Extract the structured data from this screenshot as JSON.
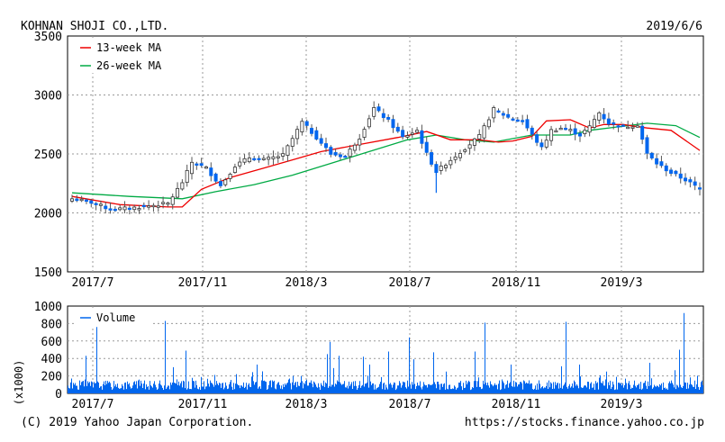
{
  "header": {
    "company": "KOHNAN SHOJI CO.,LTD.",
    "date": "2019/6/6"
  },
  "footer": {
    "copyright": "(C) 2019 Yahoo Japan Corporation.",
    "url": "https://stocks.finance.yahoo.co.jp"
  },
  "chart_data": [
    {
      "type": "candlestick",
      "title": "",
      "yaxis": {
        "ticks": [
          "3500",
          "3000",
          "2500",
          "2000",
          "1500"
        ],
        "ylim": [
          1500,
          3500
        ]
      },
      "xaxis": {
        "ticks": [
          "2017/7",
          "2017/11",
          "2018/3",
          "2018/7",
          "2018/11",
          "2019/3"
        ]
      },
      "grid": true,
      "legend": {
        "placement": "top-left",
        "entries": [
          "13-week MA",
          "26-week MA"
        ]
      },
      "colors": {
        "up": "#ffffff",
        "down": "#0066ee",
        "ma13": "#ee0000",
        "ma26": "#00aa44"
      },
      "anchors": [
        [
          0,
          2120,
          "up"
        ],
        [
          4,
          2090,
          "down"
        ],
        [
          8,
          2030,
          "down"
        ],
        [
          12,
          2040,
          "up"
        ],
        [
          16,
          2060,
          "up"
        ],
        [
          20,
          2080,
          "up"
        ],
        [
          23,
          2260,
          "up"
        ],
        [
          25,
          2430,
          "up"
        ],
        [
          28,
          2380,
          "down"
        ],
        [
          31,
          2230,
          "down"
        ],
        [
          34,
          2400,
          "up"
        ],
        [
          37,
          2470,
          "up"
        ],
        [
          40,
          2450,
          "down"
        ],
        [
          44,
          2490,
          "up"
        ],
        [
          48,
          2770,
          "up"
        ],
        [
          51,
          2640,
          "down"
        ],
        [
          54,
          2500,
          "down"
        ],
        [
          57,
          2480,
          "down"
        ],
        [
          60,
          2640,
          "up"
        ],
        [
          63,
          2890,
          "up"
        ],
        [
          66,
          2780,
          "down"
        ],
        [
          69,
          2640,
          "up"
        ],
        [
          72,
          2700,
          "down"
        ],
        [
          74,
          2500,
          "down"
        ],
        [
          76,
          2350,
          "down"
        ],
        [
          79,
          2450,
          "up"
        ],
        [
          82,
          2550,
          "up"
        ],
        [
          85,
          2650,
          "up"
        ],
        [
          88,
          2880,
          "up"
        ],
        [
          91,
          2810,
          "down"
        ],
        [
          94,
          2780,
          "down"
        ],
        [
          96,
          2660,
          "down"
        ],
        [
          98,
          2550,
          "down"
        ],
        [
          100,
          2700,
          "up"
        ],
        [
          102,
          2720,
          "up"
        ],
        [
          104,
          2700,
          "down"
        ],
        [
          106,
          2660,
          "up"
        ],
        [
          108,
          2730,
          "up"
        ],
        [
          110,
          2850,
          "up"
        ],
        [
          112,
          2760,
          "down"
        ],
        [
          115,
          2730,
          "down"
        ],
        [
          118,
          2750,
          "up"
        ],
        [
          120,
          2500,
          "down"
        ],
        [
          122,
          2420,
          "down"
        ],
        [
          125,
          2340,
          "down"
        ],
        [
          128,
          2280,
          "down"
        ],
        [
          131,
          2200,
          "down"
        ]
      ],
      "ma13": [
        [
          0,
          2140
        ],
        [
          10,
          2070
        ],
        [
          20,
          2050
        ],
        [
          23,
          2050
        ],
        [
          27,
          2200
        ],
        [
          33,
          2300
        ],
        [
          40,
          2380
        ],
        [
          46,
          2450
        ],
        [
          52,
          2520
        ],
        [
          60,
          2580
        ],
        [
          68,
          2640
        ],
        [
          74,
          2690
        ],
        [
          79,
          2620
        ],
        [
          85,
          2620
        ],
        [
          89,
          2600
        ],
        [
          92,
          2610
        ],
        [
          96,
          2650
        ],
        [
          99,
          2780
        ],
        [
          104,
          2790
        ],
        [
          108,
          2720
        ],
        [
          111,
          2750
        ],
        [
          115,
          2750
        ],
        [
          120,
          2720
        ],
        [
          125,
          2700
        ],
        [
          131,
          2530
        ]
      ],
      "ma26": [
        [
          0,
          2170
        ],
        [
          12,
          2140
        ],
        [
          23,
          2120
        ],
        [
          30,
          2180
        ],
        [
          38,
          2240
        ],
        [
          46,
          2320
        ],
        [
          54,
          2420
        ],
        [
          62,
          2520
        ],
        [
          70,
          2620
        ],
        [
          76,
          2660
        ],
        [
          82,
          2620
        ],
        [
          88,
          2600
        ],
        [
          96,
          2660
        ],
        [
          104,
          2660
        ],
        [
          108,
          2700
        ],
        [
          114,
          2730
        ],
        [
          120,
          2760
        ],
        [
          126,
          2740
        ],
        [
          131,
          2640
        ]
      ]
    },
    {
      "type": "bar",
      "title": "",
      "ylabel": "(x1000)",
      "yaxis": {
        "ticks": [
          "1000",
          "800",
          "600",
          "400",
          "200",
          "0"
        ],
        "ylim": [
          0,
          1000
        ]
      },
      "xaxis": {
        "ticks": [
          "2017/7",
          "2017/11",
          "2018/3",
          "2018/7",
          "2018/11",
          "2019/3"
        ]
      },
      "legend": {
        "placement": "top-left",
        "entries": [
          "Volume"
        ]
      },
      "colors": {
        "bar": "#0066ee"
      },
      "spikes": [
        [
          20,
          430
        ],
        [
          32,
          760
        ],
        [
          108,
          830
        ],
        [
          117,
          300
        ],
        [
          131,
          490
        ],
        [
          210,
          330
        ],
        [
          215,
          150
        ],
        [
          250,
          200
        ],
        [
          259,
          200
        ],
        [
          270,
          150
        ],
        [
          288,
          450
        ],
        [
          291,
          590
        ],
        [
          295,
          290
        ],
        [
          301,
          430
        ],
        [
          328,
          420
        ],
        [
          335,
          330
        ],
        [
          356,
          480
        ],
        [
          379,
          640
        ],
        [
          384,
          390
        ],
        [
          406,
          470
        ],
        [
          420,
          250
        ],
        [
          452,
          480
        ],
        [
          463,
          810
        ],
        [
          492,
          330
        ],
        [
          548,
          310
        ],
        [
          553,
          820
        ],
        [
          568,
          330
        ],
        [
          598,
          250
        ],
        [
          609,
          190
        ],
        [
          646,
          350
        ],
        [
          679,
          500
        ],
        [
          684,
          920
        ],
        [
          733,
          290
        ]
      ]
    }
  ]
}
